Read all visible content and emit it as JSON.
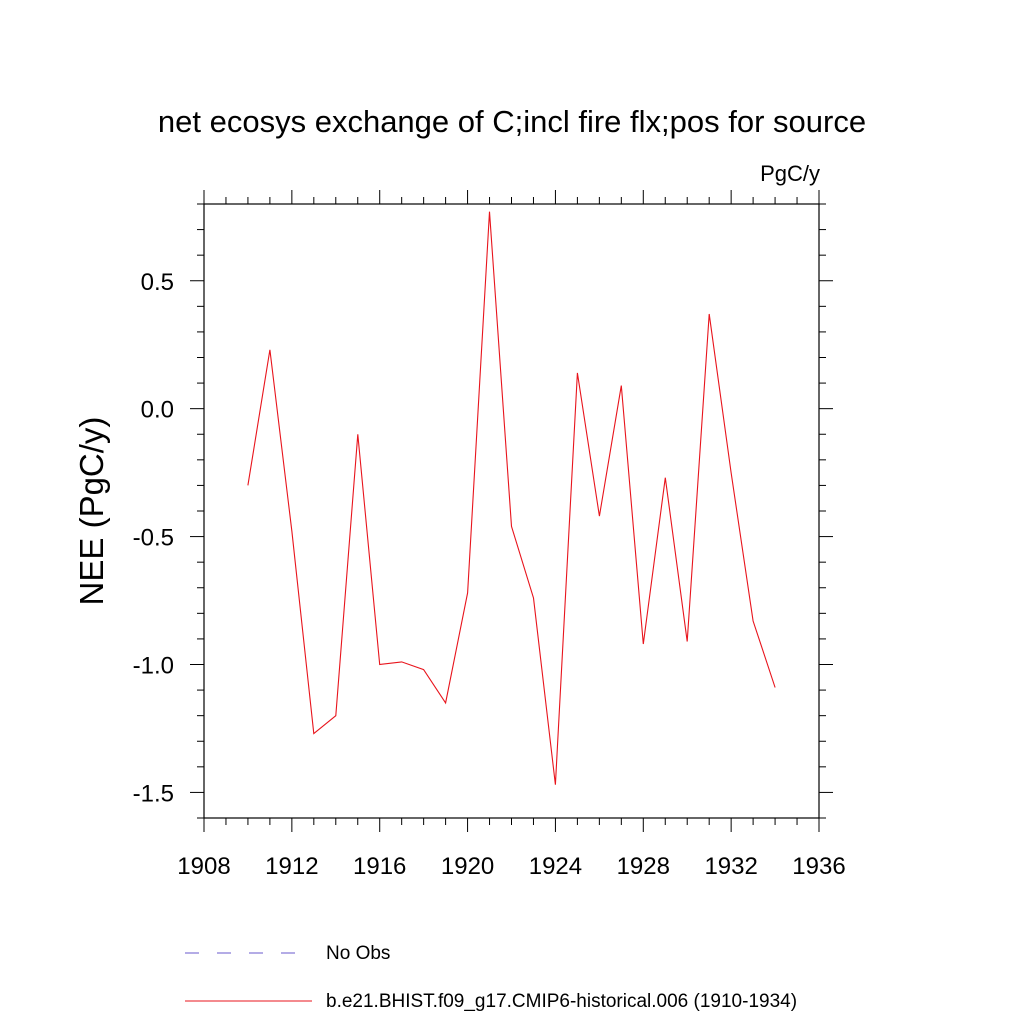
{
  "chart_data": {
    "type": "line",
    "title": "net ecosys exchange of C;incl fire flx;pos for source",
    "units": "PgC/y",
    "xlabel": "",
    "ylabel": "NEE  (PgC/y)",
    "xlim": [
      1908,
      1936
    ],
    "ylim": [
      -1.6,
      0.8
    ],
    "xticks": [
      1908,
      1912,
      1916,
      1920,
      1924,
      1928,
      1932,
      1936
    ],
    "xtick_labels": [
      "1908",
      "1912",
      "1916",
      "1920",
      "1924",
      "1928",
      "1932",
      "1936"
    ],
    "yticks": [
      -1.5,
      -1.0,
      -0.5,
      0.0,
      0.5
    ],
    "ytick_labels": [
      "-1.5",
      "-1.0",
      "-0.5",
      "0.0",
      "0.5"
    ],
    "grid": false,
    "series": [
      {
        "name": "b.e21.BHIST.f09_g17.CMIP6-historical.006 (1910-1934)",
        "color": "#e8141c",
        "style": "solid",
        "x": [
          1910,
          1911,
          1912,
          1913,
          1914,
          1915,
          1916,
          1917,
          1918,
          1919,
          1920,
          1921,
          1922,
          1923,
          1924,
          1925,
          1926,
          1927,
          1928,
          1929,
          1930,
          1931,
          1932,
          1933,
          1934
        ],
        "values": [
          -0.3,
          0.23,
          -0.48,
          -1.27,
          -1.2,
          -0.1,
          -1.0,
          -0.99,
          -1.02,
          -1.15,
          -0.72,
          0.77,
          -0.46,
          -0.74,
          -1.47,
          0.14,
          -0.42,
          0.09,
          -0.92,
          -0.27,
          -0.91,
          0.37,
          -0.25,
          -0.83,
          -1.09
        ]
      }
    ],
    "legend": {
      "placement": "bottom-left",
      "entries": [
        {
          "label": "No Obs",
          "color": "#6a5acd",
          "style": "dashed"
        },
        {
          "label": "b.e21.BHIST.f09_g17.CMIP6-historical.006 (1910-1934)",
          "color": "#e8141c",
          "style": "solid"
        }
      ]
    }
  }
}
